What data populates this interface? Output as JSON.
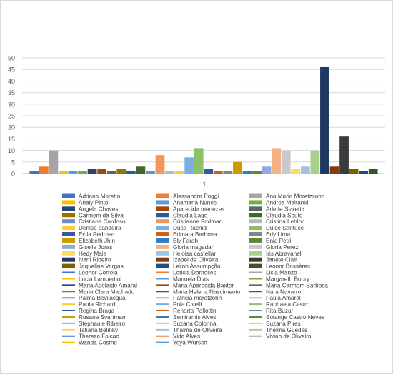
{
  "chart_data": {
    "type": "bar",
    "categories": [
      "1"
    ],
    "yticks": [
      0,
      5,
      10,
      15,
      20,
      25,
      30,
      35,
      40,
      45,
      50
    ],
    "ylim": [
      0,
      50
    ],
    "grid": true,
    "legend_position": "bottom",
    "title": "",
    "xlabel": "",
    "ylabel": "",
    "series": [
      {
        "name": "Adriana Moretto",
        "values": [
          1
        ],
        "color": "#4472C4",
        "legend": "bar"
      },
      {
        "name": "Alessandra Poggi",
        "values": [
          3
        ],
        "color": "#ED7D31",
        "legend": "bar"
      },
      {
        "name": "Ana Maria Moretzsohn",
        "values": [
          10
        ],
        "color": "#A5A5A5",
        "legend": "bar"
      },
      {
        "name": "Analy Pinto",
        "values": [
          1
        ],
        "color": "#FFC000",
        "legend": "bar"
      },
      {
        "name": "Anamaria Nunes",
        "values": [
          1
        ],
        "color": "#5B9BD5",
        "legend": "bar"
      },
      {
        "name": "Andrea Maltaroli",
        "values": [
          1
        ],
        "color": "#70AD47",
        "legend": "bar"
      },
      {
        "name": "Angela Chaves",
        "values": [
          2
        ],
        "color": "#264478",
        "legend": "bar"
      },
      {
        "name": "Aparecida menezes",
        "values": [
          2
        ],
        "color": "#9E480E",
        "legend": "bar"
      },
      {
        "name": "Arlette Siaretta",
        "values": [
          1
        ],
        "color": "#636363",
        "legend": "bar"
      },
      {
        "name": "Carmem da Silva",
        "values": [
          2
        ],
        "color": "#997300",
        "legend": "bar"
      },
      {
        "name": "Claudia Lage",
        "values": [
          1
        ],
        "color": "#255E91",
        "legend": "bar"
      },
      {
        "name": "Claudia Souto",
        "values": [
          3
        ],
        "color": "#43682B",
        "legend": "bar"
      },
      {
        "name": "Cristiane Cardoso",
        "values": [
          1
        ],
        "color": "#698ED0",
        "legend": "bar"
      },
      {
        "name": "Cristianne Fridman",
        "values": [
          8
        ],
        "color": "#F1975A",
        "legend": "bar"
      },
      {
        "name": "Cristina Leblon",
        "values": [
          1
        ],
        "color": "#B7B7B7",
        "legend": "bar"
      },
      {
        "name": "Denise bandeira",
        "values": [
          1
        ],
        "color": "#FFCD33",
        "legend": "bar"
      },
      {
        "name": "Duca Rachid",
        "values": [
          7
        ],
        "color": "#7CAFDD",
        "legend": "bar"
      },
      {
        "name": "Dulce Santucci",
        "values": [
          11
        ],
        "color": "#8CC168",
        "legend": "bar"
      },
      {
        "name": "Ecila Pedroso",
        "values": [
          2
        ],
        "color": "#335AA1",
        "legend": "bar"
      },
      {
        "name": "Edmara Barbosa",
        "values": [
          1
        ],
        "color": "#D26012",
        "legend": "bar"
      },
      {
        "name": "Edy Lima",
        "values": [
          1
        ],
        "color": "#848484",
        "legend": "bar"
      },
      {
        "name": "Elizabeth Jhin",
        "values": [
          5
        ],
        "color": "#CC9A00",
        "legend": "bar"
      },
      {
        "name": "Ely Farah",
        "values": [
          1
        ],
        "color": "#327DC2",
        "legend": "bar"
      },
      {
        "name": "Enia Petri",
        "values": [
          1
        ],
        "color": "#5A8A39",
        "legend": "bar"
      },
      {
        "name": "Giselle  Joras",
        "values": [
          3
        ],
        "color": "#8FAADC",
        "legend": "bar"
      },
      {
        "name": "Gloria magadan",
        "values": [
          11
        ],
        "color": "#F4B183",
        "legend": "bar"
      },
      {
        "name": "Gloria Perez",
        "values": [
          10
        ],
        "color": "#C9C9C9",
        "legend": "bar"
      },
      {
        "name": "Hedy Maia",
        "values": [
          2
        ],
        "color": "#FFD966",
        "legend": "bar"
      },
      {
        "name": "Heloisa castellar",
        "values": [
          3
        ],
        "color": "#9DC3E6",
        "legend": "bar"
      },
      {
        "name": "Iris Abravanel",
        "values": [
          10
        ],
        "color": "#A9D18E",
        "legend": "bar"
      },
      {
        "name": "Ivani Ribeiro",
        "values": [
          46
        ],
        "color": "#1F3864",
        "legend": "bar"
      },
      {
        "name": "Izabel de Oliveira",
        "values": [
          3
        ],
        "color": "#843C0C",
        "legend": "bar"
      },
      {
        "name": "Janete Clair",
        "values": [
          16
        ],
        "color": "#3B3B3B",
        "legend": "bar"
      },
      {
        "name": "Jaqueline Vargas",
        "values": [
          2
        ],
        "color": "#7F6000",
        "legend": "bar"
      },
      {
        "name": "Leilah Assumpção",
        "values": [
          1
        ],
        "color": "#1F4E79",
        "legend": "bar"
      },
      {
        "name": "Leonor Bassères",
        "values": [
          2
        ],
        "color": "#375623",
        "legend": "bar"
      },
      {
        "name": "Leonor Correia",
        "values": [
          0
        ],
        "color": "#4472C4",
        "legend": "line"
      },
      {
        "name": "Leticia Dornelles",
        "values": [
          0
        ],
        "color": "#ED7D31",
        "legend": "line"
      },
      {
        "name": "Licia Manzo",
        "values": [
          0
        ],
        "color": "#A5A5A5",
        "legend": "line"
      },
      {
        "name": "Lucia Lambertini",
        "values": [
          0
        ],
        "color": "#FFC000",
        "legend": "line"
      },
      {
        "name": "Manuela Dias",
        "values": [
          0
        ],
        "color": "#5B9BD5",
        "legend": "line"
      },
      {
        "name": "Margareth  Boury",
        "values": [
          0
        ],
        "color": "#70AD47",
        "legend": "line"
      },
      {
        "name": "Maria Adelaide Amaral",
        "values": [
          0
        ],
        "color": "#264478",
        "legend": "line"
      },
      {
        "name": "Maria Aparecida Baxter",
        "values": [
          0
        ],
        "color": "#9E480E",
        "legend": "line"
      },
      {
        "name": "Maria Carmem Barbosa",
        "values": [
          0
        ],
        "color": "#636363",
        "legend": "line"
      },
      {
        "name": "Maria Clara Machado",
        "values": [
          0
        ],
        "color": "#997300",
        "legend": "line"
      },
      {
        "name": "Maria Helena Nascimento",
        "values": [
          0
        ],
        "color": "#255E91",
        "legend": "line"
      },
      {
        "name": "Nara Navarro",
        "values": [
          0
        ],
        "color": "#43682B",
        "legend": "line"
      },
      {
        "name": "Palma Bevilacqua",
        "values": [
          0
        ],
        "color": "#698ED0",
        "legend": "line"
      },
      {
        "name": "Patricia moretzohn",
        "values": [
          0
        ],
        "color": "#F1975A",
        "legend": "line"
      },
      {
        "name": "Paula Amaral",
        "values": [
          0
        ],
        "color": "#B7B7B7",
        "legend": "line"
      },
      {
        "name": "Paula Richard",
        "values": [
          0
        ],
        "color": "#FFCD33",
        "legend": "line"
      },
      {
        "name": "Pola Civelli",
        "values": [
          0
        ],
        "color": "#7CAFDD",
        "legend": "line"
      },
      {
        "name": "Raphaela Castro",
        "values": [
          0
        ],
        "color": "#8CC168",
        "legend": "line"
      },
      {
        "name": "Regina Braga",
        "values": [
          0
        ],
        "color": "#335AA1",
        "legend": "line"
      },
      {
        "name": "Renarta Pallottini",
        "values": [
          0
        ],
        "color": "#D26012",
        "legend": "line"
      },
      {
        "name": "Rita Buzar",
        "values": [
          0
        ],
        "color": "#848484",
        "legend": "line"
      },
      {
        "name": "Rosane Svartman",
        "values": [
          0
        ],
        "color": "#CC9A00",
        "legend": "line"
      },
      {
        "name": "Semiramis Alves",
        "values": [
          0
        ],
        "color": "#327DC2",
        "legend": "line"
      },
      {
        "name": "Solange Castro Neves",
        "values": [
          0
        ],
        "color": "#5A8A39",
        "legend": "line"
      },
      {
        "name": "Stephanie Ribeiro",
        "values": [
          0
        ],
        "color": "#8FAADC",
        "legend": "line"
      },
      {
        "name": "Suzana Colonna",
        "values": [
          0
        ],
        "color": "#F4B183",
        "legend": "line"
      },
      {
        "name": "Suzana Pires",
        "values": [
          0
        ],
        "color": "#C9C9C9",
        "legend": "line"
      },
      {
        "name": "Tatiana Belinky",
        "values": [
          0
        ],
        "color": "#FFD966",
        "legend": "line"
      },
      {
        "name": "Thalma de Oliveira",
        "values": [
          0
        ],
        "color": "#9DC3E6",
        "legend": "line"
      },
      {
        "name": "Thelma Guedes",
        "values": [
          0
        ],
        "color": "#A9D18E",
        "legend": "line"
      },
      {
        "name": "Thereza Falcao",
        "values": [
          0
        ],
        "color": "#4472C4",
        "legend": "line"
      },
      {
        "name": "Vida Alves",
        "values": [
          0
        ],
        "color": "#ED7D31",
        "legend": "line"
      },
      {
        "name": "Vivian de Oliveira",
        "values": [
          0
        ],
        "color": "#A5A5A5",
        "legend": "line"
      },
      {
        "name": "Wanda Cosmo",
        "values": [
          0
        ],
        "color": "#FFC000",
        "legend": "line"
      },
      {
        "name": "Yoya Wursch",
        "values": [
          0
        ],
        "color": "#5B9BD5",
        "legend": "line"
      }
    ]
  }
}
